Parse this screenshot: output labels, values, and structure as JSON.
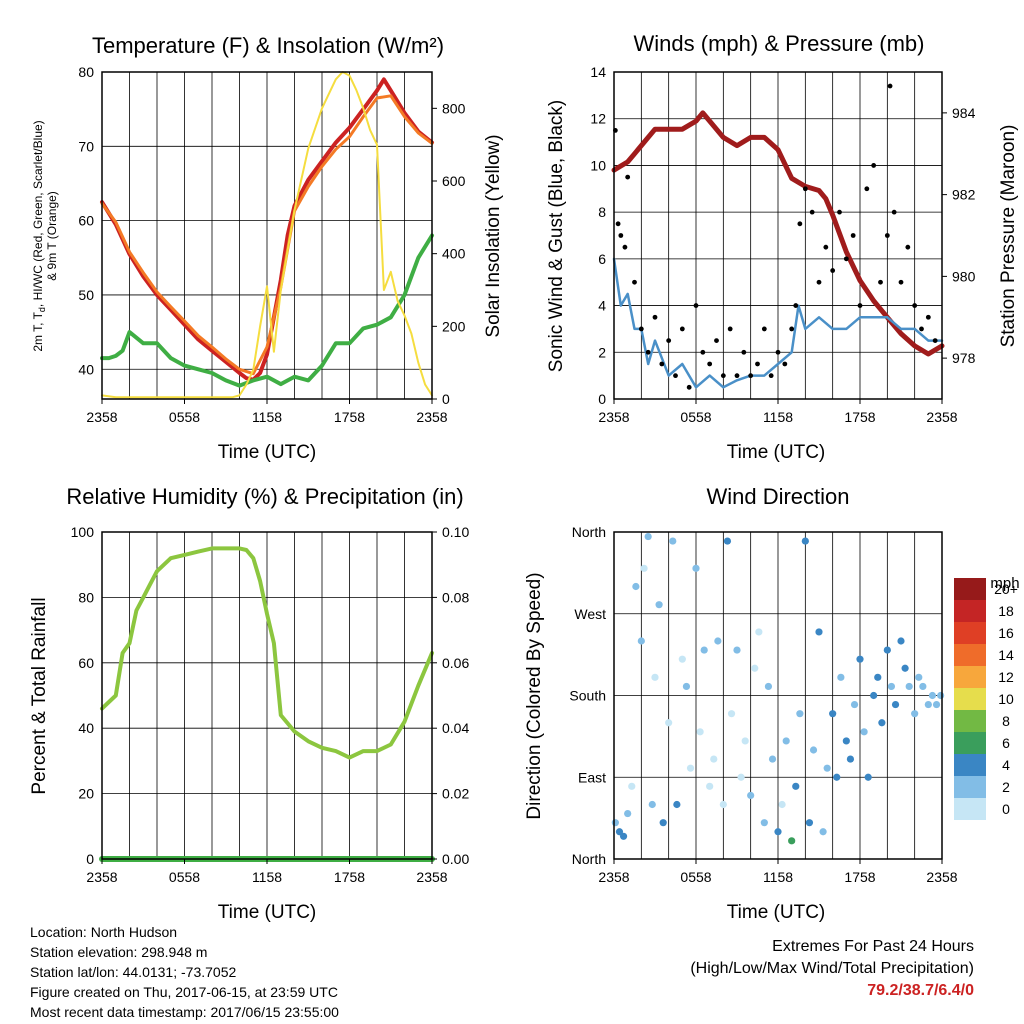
{
  "chart_data": [
    {
      "type": "line",
      "title": "Temperature (F) & Insolation (W/m²)",
      "xlabel": "Time (UTC)",
      "ylabel": "2m T, Td, HI/WC (Red, Green, Scarlet/Blue) & 9m T (Orange)",
      "ylabel_line1": "2m T, T",
      "ylabel_sub": "d",
      "ylabel_line1_end": ", HI/WC (Red, Green, Scarlet/Blue)",
      "ylabel_line2": "& 9m T (Orange)",
      "ylabel_right": "Solar Insolation (Yellow)",
      "x_ticks": [
        "2358",
        "0558",
        "1158",
        "1758",
        "2358"
      ],
      "xlim": [
        0,
        24
      ],
      "ylim": [
        36,
        80
      ],
      "y_ticks": [
        40,
        50,
        60,
        70,
        80
      ],
      "ylim_right": [
        0,
        900
      ],
      "y_ticks_right": [
        0,
        200,
        400,
        600,
        800
      ],
      "series": [
        {
          "name": "2m T (Red)",
          "color": "#cc2222",
          "axis": "left",
          "x": [
            0,
            0.5,
            1,
            2,
            3,
            4,
            5,
            6,
            7,
            8,
            9,
            10,
            10.5,
            11,
            11.5,
            12,
            12.5,
            13,
            13.5,
            14,
            15,
            16,
            17,
            18,
            19,
            20,
            20.5,
            21,
            22,
            23,
            24
          ],
          "values": [
            62.5,
            61,
            59.5,
            55.5,
            52.5,
            50,
            48,
            46,
            44,
            42.5,
            41,
            39.5,
            38.8,
            38.6,
            39.5,
            42,
            47,
            52,
            58,
            62,
            65.5,
            68,
            70.5,
            72.5,
            75,
            77.5,
            79,
            77.5,
            74.5,
            72,
            70.5
          ]
        },
        {
          "name": "9m T (Orange)",
          "color": "#f47a25",
          "axis": "left",
          "x": [
            0,
            1,
            2,
            3,
            4,
            5,
            6,
            7,
            8,
            9,
            10,
            11,
            12,
            13,
            14,
            15,
            16,
            17,
            18,
            19,
            20,
            21,
            22,
            23,
            24
          ],
          "values": [
            62.3,
            59.8,
            55.8,
            53,
            50.4,
            48.4,
            46.5,
            44.5,
            43,
            41.4,
            40,
            39.4,
            43,
            51,
            61.3,
            64.6,
            67.3,
            69.6,
            71.3,
            74,
            76.5,
            76.8,
            74,
            71.8,
            70.4
          ]
        },
        {
          "name": "Td (Green)",
          "color": "#3fae44",
          "axis": "left",
          "x": [
            0,
            0.5,
            1,
            1.5,
            2,
            3,
            4,
            5,
            6,
            7,
            8,
            9,
            10,
            11,
            12,
            13,
            14,
            15,
            16,
            17,
            18,
            19,
            20,
            21,
            22,
            23,
            24
          ],
          "values": [
            41.5,
            41.5,
            41.8,
            42.5,
            45,
            43.5,
            43.5,
            41.5,
            40.5,
            40,
            39.5,
            38.5,
            37.8,
            38.5,
            39,
            38,
            39,
            38.5,
            40.5,
            43.5,
            43.5,
            45.5,
            46,
            47,
            50,
            55,
            58
          ]
        },
        {
          "name": "Solar Insolation (Yellow)",
          "color": "#f5dd3f",
          "axis": "right",
          "x": [
            0,
            1,
            2,
            3,
            4,
            5,
            6,
            7,
            8,
            9,
            9.5,
            10,
            10.5,
            11,
            11.5,
            12,
            12.5,
            13,
            14,
            15,
            16,
            17,
            17.5,
            18,
            18.5,
            19,
            19.5,
            20,
            20.5,
            21,
            21.5,
            22,
            22.5,
            23,
            23.5,
            24
          ],
          "values": [
            10,
            5,
            5,
            5,
            5,
            5,
            5,
            5,
            5,
            5,
            5,
            10,
            40,
            80,
            200,
            310,
            130,
            300,
            520,
            690,
            800,
            880,
            900,
            890,
            850,
            800,
            740,
            700,
            300,
            350,
            270,
            230,
            180,
            100,
            40,
            10
          ]
        }
      ]
    },
    {
      "type": "scatter",
      "title": "Winds (mph) & Pressure (mb)",
      "xlabel": "Time (UTC)",
      "ylabel": "Sonic Wind & Gust (Blue, Black)",
      "ylabel_right": "Station Pressure (Maroon)",
      "x_ticks": [
        "2358",
        "0558",
        "1158",
        "1758",
        "2358"
      ],
      "xlim": [
        0,
        24
      ],
      "ylim": [
        0,
        14
      ],
      "y_ticks": [
        0,
        2,
        4,
        6,
        8,
        10,
        12,
        14
      ],
      "ylim_right": [
        977,
        985
      ],
      "y_ticks_right": [
        978,
        980,
        982,
        984
      ],
      "series": [
        {
          "name": "Station Pressure (Maroon)",
          "color": "#a01c1c",
          "axis": "right",
          "style": "line",
          "x": [
            0,
            0.5,
            1,
            1.5,
            2,
            3,
            4,
            5,
            6,
            6.5,
            7,
            8,
            9,
            10,
            11,
            12,
            13,
            14,
            15,
            15.5,
            16,
            17,
            18,
            19,
            20,
            21,
            22,
            23,
            24
          ],
          "values": [
            982.6,
            982.7,
            982.8,
            983,
            983.2,
            983.6,
            983.6,
            983.6,
            983.8,
            984,
            983.8,
            983.4,
            983.2,
            983.4,
            983.4,
            983.1,
            982.4,
            982.2,
            982.1,
            981.9,
            981.5,
            980.6,
            979.9,
            979.4,
            979,
            978.6,
            978.3,
            978.1,
            978.3
          ]
        },
        {
          "name": "Sonic Wind (Blue)",
          "color": "#4a90c8",
          "axis": "left",
          "style": "line",
          "x": [
            0,
            0.5,
            1,
            1.5,
            2,
            2.5,
            3,
            4,
            5,
            6,
            7,
            8,
            9,
            10,
            11,
            12,
            13,
            13.5,
            14,
            15,
            16,
            17,
            18,
            19,
            20,
            21,
            22,
            23,
            24
          ],
          "values": [
            6,
            4,
            4.5,
            3,
            3,
            1.5,
            2.5,
            1,
            1.5,
            0.5,
            1,
            0.5,
            0.8,
            1,
            1,
            1.5,
            2,
            4,
            3,
            3.5,
            3,
            3,
            3.5,
            3.5,
            3.5,
            3,
            3,
            2.5,
            2.5
          ]
        },
        {
          "name": "Gust (Black)",
          "color": "#000000",
          "axis": "left",
          "style": "dots",
          "x": [
            0.1,
            0.3,
            0.5,
            0.8,
            1,
            1.5,
            2,
            2.5,
            3,
            3.5,
            4,
            4.5,
            5,
            5.5,
            6,
            6.5,
            7,
            7.5,
            8,
            8.5,
            9,
            9.5,
            10,
            10.5,
            11,
            11.5,
            12,
            12.5,
            13,
            13.3,
            13.6,
            14,
            14.5,
            15,
            15.5,
            16,
            16.5,
            17,
            17.5,
            18,
            18.5,
            19,
            19.5,
            20,
            20.2,
            20.5,
            21,
            21.5,
            22,
            22.5,
            23,
            23.5
          ],
          "values": [
            11.5,
            7.5,
            7,
            6.5,
            9.5,
            5,
            3,
            2,
            3.5,
            1.5,
            2.5,
            1,
            3,
            0.5,
            4,
            2,
            1.5,
            2.5,
            1,
            3,
            1,
            2,
            1,
            1.5,
            3,
            1,
            2,
            1.5,
            3,
            4,
            7.5,
            9,
            8,
            5,
            6.5,
            5.5,
            8,
            6,
            7,
            4,
            9,
            10,
            5,
            7,
            13.4,
            8,
            5,
            6.5,
            4,
            3,
            3.5,
            2.5
          ]
        }
      ]
    },
    {
      "type": "line",
      "title": "Relative Humidity (%) & Precipitation (in)",
      "xlabel": "Time (UTC)",
      "ylabel": "Percent & Total Rainfall",
      "x_ticks": [
        "2358",
        "0558",
        "1158",
        "1758",
        "2358"
      ],
      "xlim": [
        0,
        24
      ],
      "ylim": [
        0,
        100
      ],
      "y_ticks": [
        0,
        20,
        40,
        60,
        80,
        100
      ],
      "ylim_right": [
        0,
        0.1
      ],
      "y_ticks_right": [
        "0.00",
        "0.02",
        "0.04",
        "0.06",
        "0.08",
        "0.10"
      ],
      "series": [
        {
          "name": "Relative Humidity (Light Green)",
          "color": "#8cc63f",
          "axis": "left",
          "x": [
            0,
            0.5,
            1,
            1.5,
            2,
            2.5,
            3,
            3.5,
            4,
            5,
            6,
            7,
            8,
            9,
            10,
            10.5,
            11,
            11.5,
            12,
            12.5,
            13,
            14,
            15,
            16,
            17,
            18,
            19,
            20,
            21,
            22,
            23,
            24
          ],
          "values": [
            46,
            48,
            50,
            63,
            66,
            76,
            80,
            84,
            88,
            92,
            93,
            94,
            95,
            95,
            95,
            94.5,
            92,
            85,
            75,
            66,
            44,
            39,
            36,
            34,
            33,
            31,
            33,
            33,
            35,
            42,
            53,
            63
          ]
        },
        {
          "name": "Total Precipitation (Green)",
          "color": "#3fae44",
          "axis": "right",
          "x": [
            0,
            24
          ],
          "values": [
            0,
            0
          ]
        }
      ]
    },
    {
      "type": "scatter",
      "title": "Wind Direction",
      "xlabel": "Time (UTC)",
      "ylabel": "Direction (Colored By Speed)",
      "x_ticks": [
        "2358",
        "0558",
        "1158",
        "1758",
        "2358"
      ],
      "xlim": [
        0,
        24
      ],
      "ylim": [
        0,
        360
      ],
      "y_ticks": [
        "North",
        "East",
        "South",
        "West",
        "North"
      ],
      "y_tick_values": [
        0,
        90,
        180,
        270,
        360
      ],
      "colorbar": {
        "title": "mph",
        "labels": [
          "0",
          "2",
          "4",
          "6",
          "8",
          "10",
          "12",
          "14",
          "16",
          "18",
          "20+"
        ],
        "colors": [
          "#c6e6f5",
          "#82bde6",
          "#3a86c4",
          "#3a9e5c",
          "#72b944",
          "#e6dd4c",
          "#f7a73c",
          "#ef6c2a",
          "#df3f25",
          "#c42525",
          "#961a1a"
        ]
      },
      "series": [
        {
          "name": "Direction (colored by speed bin)",
          "x": [
            0.1,
            0.4,
            0.7,
            1,
            1.3,
            1.6,
            2,
            2.2,
            2.5,
            2.8,
            3,
            3.3,
            3.6,
            4,
            4.3,
            4.6,
            5,
            5.3,
            5.6,
            6,
            6.3,
            6.6,
            7,
            7.3,
            7.6,
            8,
            8.3,
            8.6,
            9,
            9.3,
            9.6,
            10,
            10.3,
            10.6,
            11,
            11.3,
            11.6,
            12,
            12.3,
            12.6,
            13,
            13.3,
            13.6,
            14,
            14.3,
            14.6,
            15,
            15.3,
            15.6,
            16,
            16.3,
            16.6,
            17,
            17.3,
            17.6,
            18,
            18.3,
            18.6,
            19,
            19.3,
            19.6,
            20,
            20.3,
            20.6,
            21,
            21.3,
            21.6,
            22,
            22.3,
            22.6,
            23,
            23.3,
            23.6,
            23.9
          ],
          "values": [
            40,
            30,
            25,
            50,
            80,
            300,
            240,
            320,
            355,
            60,
            200,
            280,
            40,
            150,
            350,
            60,
            220,
            190,
            100,
            320,
            140,
            230,
            80,
            110,
            240,
            60,
            350,
            160,
            230,
            90,
            130,
            70,
            210,
            250,
            40,
            190,
            110,
            30,
            60,
            130,
            20,
            80,
            160,
            350,
            40,
            120,
            250,
            30,
            100,
            160,
            90,
            200,
            130,
            110,
            170,
            220,
            140,
            90,
            180,
            200,
            150,
            230,
            190,
            170,
            240,
            210,
            190,
            160,
            200,
            190,
            170,
            180,
            170,
            180
          ],
          "speed_bins": [
            "2",
            "4",
            "4",
            "2",
            "0",
            "2",
            "2",
            "0",
            "2",
            "2",
            "0",
            "2",
            "4",
            "0",
            "2",
            "4",
            "0",
            "2",
            "0",
            "2",
            "0",
            "2",
            "0",
            "0",
            "2",
            "0",
            "4",
            "0",
            "2",
            "0",
            "0",
            "2",
            "0",
            "0",
            "2",
            "2",
            "2",
            "4",
            "0",
            "2",
            "6",
            "4",
            "2",
            "4",
            "4",
            "2",
            "4",
            "2",
            "2",
            "4",
            "4",
            "2",
            "4",
            "4",
            "2",
            "4",
            "2",
            "4",
            "4",
            "4",
            "4",
            "4",
            "2",
            "4",
            "4",
            "4",
            "2",
            "2",
            "2",
            "2",
            "2",
            "2",
            "2",
            "2"
          ]
        }
      ]
    }
  ],
  "footer": {
    "location": "Location: North Hudson",
    "elevation": "Station elevation: 298.948 m",
    "latlon": "Station lat/lon: 44.0131; -73.7052",
    "created": "Figure created on Thu, 2017-06-15, at 23:59 UTC",
    "recent": "Most recent data timestamp: 2017/06/15 23:55:00"
  },
  "extremes": {
    "heading": "Extremes For Past 24 Hours",
    "subheading": "(High/Low/Max Wind/Total Precipitation)",
    "values": "79.2/38.7/6.4/0"
  }
}
